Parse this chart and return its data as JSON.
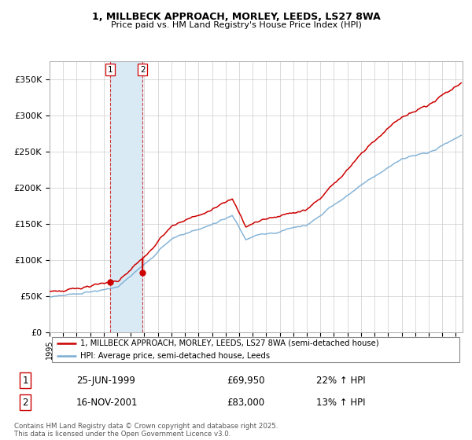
{
  "title1": "1, MILLBECK APPROACH, MORLEY, LEEDS, LS27 8WA",
  "title2": "Price paid vs. HM Land Registry's House Price Index (HPI)",
  "ylim": [
    0,
    375000
  ],
  "yticks": [
    0,
    50000,
    100000,
    150000,
    200000,
    250000,
    300000,
    350000
  ],
  "ytick_labels": [
    "£0",
    "£50K",
    "£100K",
    "£150K",
    "£200K",
    "£250K",
    "£300K",
    "£350K"
  ],
  "red_color": "#cc0000",
  "blue_color": "#7aadd4",
  "shading_color": "#daeaf5",
  "transaction1_date": 1999.47,
  "transaction2_date": 2001.87,
  "legend_red": "1, MILLBECK APPROACH, MORLEY, LEEDS, LS27 8WA (semi-detached house)",
  "legend_blue": "HPI: Average price, semi-detached house, Leeds",
  "table_rows": [
    {
      "num": "1",
      "date": "25-JUN-1999",
      "price": "£69,950",
      "hpi": "22% ↑ HPI"
    },
    {
      "num": "2",
      "date": "16-NOV-2001",
      "price": "£83,000",
      "hpi": "13% ↑ HPI"
    }
  ],
  "footnote1": "Contains HM Land Registry data © Crown copyright and database right 2025.",
  "footnote2": "This data is licensed under the Open Government Licence v3.0.",
  "grid_color": "#cccccc"
}
